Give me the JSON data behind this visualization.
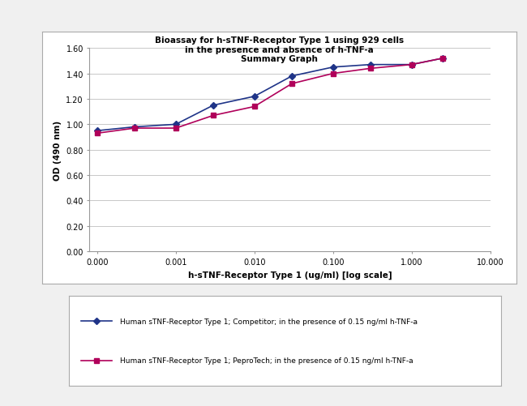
{
  "title_line1": "Bioassay for h-sTNF-Receptor Type 1 using 929 cells",
  "title_line2": "in the presence and absence of h-TNF-a",
  "title_line3": "Summary Graph",
  "xlabel": "h-sTNF-Receptor Type 1 (ug/ml) [log scale]",
  "ylabel": "OD (490 nm)",
  "ylim": [
    0.0,
    1.6
  ],
  "yticks": [
    0.0,
    0.2,
    0.4,
    0.6,
    0.8,
    1.0,
    1.2,
    1.4,
    1.6
  ],
  "xtick_positions": [
    0.0001,
    0.001,
    0.01,
    0.1,
    1.0,
    10.0
  ],
  "xtick_labels": [
    "0.000",
    "0.001",
    "0.010",
    "0.100",
    "1.000",
    "10.000"
  ],
  "competitor_x": [
    0.0001,
    0.0003,
    0.001,
    0.003,
    0.01,
    0.03,
    0.1,
    0.3,
    1.0,
    2.5
  ],
  "competitor_y": [
    0.95,
    0.98,
    1.0,
    1.15,
    1.22,
    1.38,
    1.45,
    1.47,
    1.47,
    1.52
  ],
  "peprotech_x": [
    0.0001,
    0.0003,
    0.001,
    0.003,
    0.01,
    0.03,
    0.1,
    0.3,
    1.0,
    2.5
  ],
  "peprotech_y": [
    0.93,
    0.97,
    0.97,
    1.07,
    1.14,
    1.32,
    1.4,
    1.44,
    1.47,
    1.52
  ],
  "competitor_color": "#1f3488",
  "peprotech_color": "#b0005a",
  "competitor_label": "Human sTNF-Receptor Type 1; Competitor; in the presence of 0.15 ng/ml h-TNF-a",
  "peprotech_label": "Human sTNF-Receptor Type 1; PeproTech; in the presence of 0.15 ng/ml h-TNF-a",
  "bg_color": "#f0f0f0",
  "plot_bg_color": "#ffffff",
  "grid_color": "#c8c8c8",
  "legend_box_color": "#aaaaaa",
  "outer_bg": "#f0f0f0"
}
